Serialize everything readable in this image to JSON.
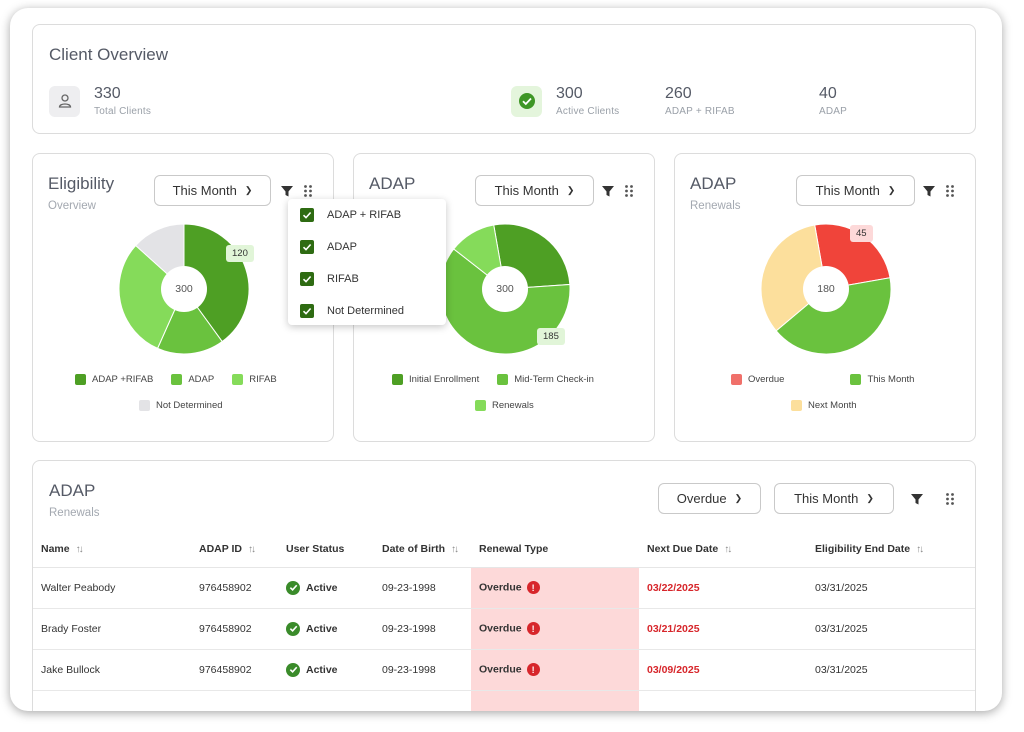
{
  "overview": {
    "title": "Client Overview",
    "total_clients": {
      "value": "330",
      "label": "Total Clients",
      "icon": "person-icon"
    },
    "active_clients": {
      "value": "300",
      "label": "Active Clients",
      "icon": "check-circle-icon"
    },
    "adap_rifab": {
      "value": "260",
      "label": "ADAP + RIFAB"
    },
    "adap": {
      "value": "40",
      "label": "ADAP"
    }
  },
  "eligibility": {
    "title": "Eligibility",
    "subtitle": "Overview",
    "period": "This Month",
    "center": "300",
    "badge": "120",
    "legend": [
      "ADAP +RIFAB",
      "ADAP",
      "RIFAB",
      "Not Determined"
    ],
    "slices": [
      {
        "label": "ADAP +RIFAB",
        "value": 120,
        "color": "#4e9f24"
      },
      {
        "label": "ADAP",
        "value": 50,
        "color": "#6ac23e"
      },
      {
        "label": "RIFAB",
        "value": 90,
        "color": "#85db5a"
      },
      {
        "label": "Not Determined",
        "value": 40,
        "color": "#e3e3e6"
      }
    ]
  },
  "filter_menu": {
    "items": [
      "ADAP + RIFAB",
      "ADAP",
      "RIFAB",
      "Not Determined"
    ]
  },
  "adap_status": {
    "title": "ADAP",
    "period": "This Month",
    "center": "300",
    "badge": "185",
    "legend": [
      "Initial Enrollment",
      "Mid-Term Check-in",
      "Renewals"
    ],
    "slices": [
      {
        "label": "Initial Enrollment",
        "value": 80,
        "color": "#4e9f24"
      },
      {
        "label": "Mid-Term Check-in",
        "value": 185,
        "color": "#6ac23e"
      },
      {
        "label": "Renewals",
        "value": 35,
        "color": "#85db5a"
      }
    ]
  },
  "adap_renewals": {
    "title": "ADAP",
    "subtitle": "Renewals",
    "period": "This Month",
    "center": "180",
    "badge": "45",
    "legend": [
      "Overdue",
      "This Month",
      "Next Month"
    ],
    "slices": [
      {
        "label": "Overdue",
        "value": 45,
        "color": "#f0443a"
      },
      {
        "label": "This Month",
        "value": 75,
        "color": "#6ac23e"
      },
      {
        "label": "Next Month",
        "value": 60,
        "color": "#fcdf9c"
      }
    ]
  },
  "table_card": {
    "title": "ADAP",
    "subtitle": "Renewals",
    "status_filter": "Overdue",
    "period": "This Month",
    "columns": [
      "Name",
      "ADAP ID",
      "User Status",
      "Date of Birth",
      "Renewal Type",
      "Next Due Date",
      "Eligibility End Date"
    ],
    "rows": [
      {
        "name": "Walter Peabody",
        "id": "976458902",
        "status": "Active",
        "dob": "09-23-1998",
        "renewal": "Overdue",
        "due": "03/22/2025",
        "end": "03/31/2025"
      },
      {
        "name": "Brady Foster",
        "id": "976458902",
        "status": "Active",
        "dob": "09-23-1998",
        "renewal": "Overdue",
        "due": "03/21/2025",
        "end": "03/31/2025"
      },
      {
        "name": "Jake Bullock",
        "id": "976458902",
        "status": "Active",
        "dob": "09-23-1998",
        "renewal": "Overdue",
        "due": "03/09/2025",
        "end": "03/31/2025"
      }
    ]
  }
}
